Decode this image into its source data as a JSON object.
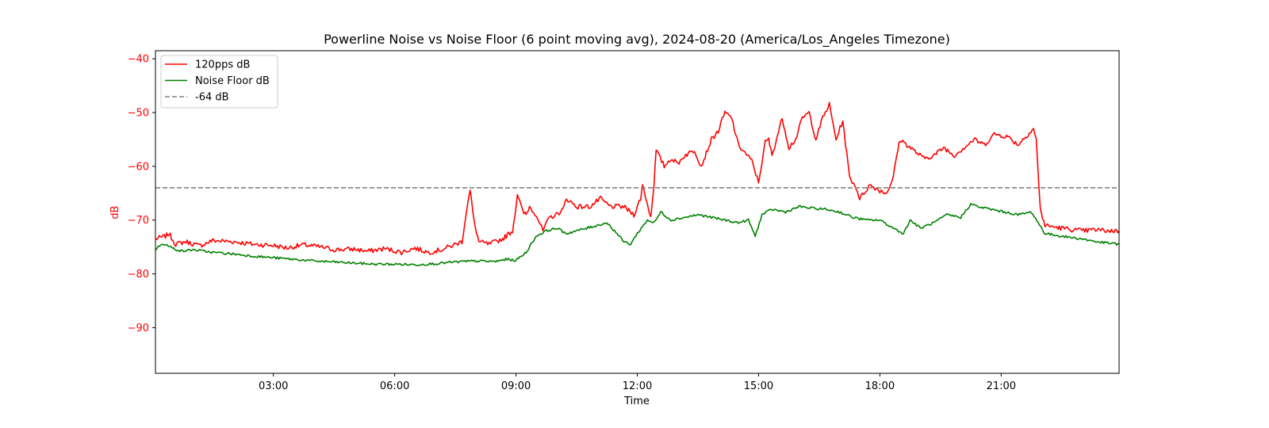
{
  "chart_data": {
    "type": "line",
    "title": "Powerline Noise vs Noise Floor (6 point moving avg), 2024-08-20 (America/Los_Angeles Timezone)",
    "xlabel": "Time",
    "ylabel": "dB",
    "xlim": [
      "00:05",
      "23:55"
    ],
    "ylim": [
      -98.5,
      -38.5
    ],
    "x_ticks": [
      "03:00",
      "06:00",
      "09:00",
      "12:00",
      "15:00",
      "18:00",
      "21:00"
    ],
    "y_ticks": [
      -40,
      -50,
      -60,
      -70,
      -80,
      -90
    ],
    "grid": false,
    "legend_position": "top-left",
    "colors": {
      "ylabel": "#ff0000",
      "ytick_labels": "#ff0000",
      "axes": "#000000"
    },
    "series": [
      {
        "name": "120pps dB",
        "color": "#ff0000",
        "style": "solid",
        "points": [
          [
            "00:05",
            -73.5
          ],
          [
            "00:20",
            -73.0
          ],
          [
            "00:25",
            -72.5
          ],
          [
            "00:35",
            -74.5
          ],
          [
            "00:50",
            -74.0
          ],
          [
            "01:10",
            -74.8
          ],
          [
            "01:30",
            -73.8
          ],
          [
            "02:00",
            -74.0
          ],
          [
            "02:30",
            -74.5
          ],
          [
            "03:00",
            -74.7
          ],
          [
            "03:20",
            -75.2
          ],
          [
            "03:45",
            -74.6
          ],
          [
            "04:10",
            -75.0
          ],
          [
            "04:30",
            -75.5
          ],
          [
            "05:00",
            -75.4
          ],
          [
            "05:20",
            -75.8
          ],
          [
            "05:45",
            -75.3
          ],
          [
            "06:10",
            -76.0
          ],
          [
            "06:30",
            -75.2
          ],
          [
            "06:50",
            -76.0
          ],
          [
            "07:10",
            -75.5
          ],
          [
            "07:30",
            -74.5
          ],
          [
            "07:40",
            -74.0
          ],
          [
            "07:48",
            -67.0
          ],
          [
            "07:52",
            -64.5
          ],
          [
            "07:58",
            -70.5
          ],
          [
            "08:05",
            -74.0
          ],
          [
            "08:20",
            -74.5
          ],
          [
            "08:40",
            -73.5
          ],
          [
            "08:55",
            -72.0
          ],
          [
            "09:00",
            -67.5
          ],
          [
            "09:02",
            -65.0
          ],
          [
            "09:10",
            -68.5
          ],
          [
            "09:15",
            -69.0
          ],
          [
            "09:20",
            -67.5
          ],
          [
            "09:30",
            -69.0
          ],
          [
            "09:40",
            -72.0
          ],
          [
            "09:50",
            -69.5
          ],
          [
            "10:00",
            -69.0
          ],
          [
            "10:10",
            -68.0
          ],
          [
            "10:15",
            -66.0
          ],
          [
            "10:30",
            -67.5
          ],
          [
            "10:50",
            -67.5
          ],
          [
            "11:05",
            -66.0
          ],
          [
            "11:20",
            -67.5
          ],
          [
            "11:40",
            -67.5
          ],
          [
            "11:55",
            -69.0
          ],
          [
            "12:05",
            -66.0
          ],
          [
            "12:08",
            -63.5
          ],
          [
            "12:12",
            -65.5
          ],
          [
            "12:20",
            -69.5
          ],
          [
            "12:25",
            -63.0
          ],
          [
            "12:28",
            -57.0
          ],
          [
            "12:40",
            -60.0
          ],
          [
            "12:50",
            -58.5
          ],
          [
            "13:00",
            -59.5
          ],
          [
            "13:10",
            -58.0
          ],
          [
            "13:25",
            -57.0
          ],
          [
            "13:35",
            -60.0
          ],
          [
            "13:50",
            -55.0
          ],
          [
            "14:00",
            -53.5
          ],
          [
            "14:10",
            -50.0
          ],
          [
            "14:20",
            -51.0
          ],
          [
            "14:30",
            -56.0
          ],
          [
            "14:40",
            -57.5
          ],
          [
            "14:50",
            -59.0
          ],
          [
            "15:00",
            -63.0
          ],
          [
            "15:10",
            -55.5
          ],
          [
            "15:15",
            -55.0
          ],
          [
            "15:20",
            -58.0
          ],
          [
            "15:35",
            -51.0
          ],
          [
            "15:45",
            -56.5
          ],
          [
            "15:55",
            -55.0
          ],
          [
            "16:05",
            -51.0
          ],
          [
            "16:15",
            -50.0
          ],
          [
            "16:25",
            -55.0
          ],
          [
            "16:35",
            -51.0
          ],
          [
            "16:45",
            -48.5
          ],
          [
            "16:55",
            -55.0
          ],
          [
            "17:05",
            -51.5
          ],
          [
            "17:15",
            -62.0
          ],
          [
            "17:25",
            -64.0
          ],
          [
            "17:30",
            -66.0
          ],
          [
            "17:45",
            -63.5
          ],
          [
            "18:00",
            -64.5
          ],
          [
            "18:10",
            -65.0
          ],
          [
            "18:20",
            -62.0
          ],
          [
            "18:25",
            -58.0
          ],
          [
            "18:30",
            -55.0
          ],
          [
            "18:50",
            -57.0
          ],
          [
            "19:05",
            -58.5
          ],
          [
            "19:20",
            -58.0
          ],
          [
            "19:35",
            -56.5
          ],
          [
            "19:50",
            -58.0
          ],
          [
            "20:05",
            -56.5
          ],
          [
            "20:20",
            -55.0
          ],
          [
            "20:35",
            -56.0
          ],
          [
            "20:50",
            -54.0
          ],
          [
            "21:10",
            -54.5
          ],
          [
            "21:25",
            -56.0
          ],
          [
            "21:40",
            -54.0
          ],
          [
            "21:48",
            -53.0
          ],
          [
            "21:52",
            -55.0
          ],
          [
            "21:58",
            -68.0
          ],
          [
            "22:05",
            -71.0
          ],
          [
            "22:30",
            -71.5
          ],
          [
            "23:00",
            -72.0
          ],
          [
            "23:20",
            -71.8
          ],
          [
            "23:40",
            -72.0
          ],
          [
            "23:55",
            -72.0
          ]
        ]
      },
      {
        "name": "Noise Floor dB",
        "color": "#008000",
        "style": "solid",
        "points": [
          [
            "00:05",
            -75.5
          ],
          [
            "00:15",
            -74.3
          ],
          [
            "00:30",
            -75.2
          ],
          [
            "00:45",
            -75.8
          ],
          [
            "01:00",
            -75.5
          ],
          [
            "01:30",
            -76.0
          ],
          [
            "02:00",
            -76.3
          ],
          [
            "02:30",
            -76.7
          ],
          [
            "03:00",
            -77.0
          ],
          [
            "03:30",
            -77.3
          ],
          [
            "04:00",
            -77.6
          ],
          [
            "04:30",
            -77.8
          ],
          [
            "05:00",
            -78.0
          ],
          [
            "05:30",
            -78.2
          ],
          [
            "06:00",
            -78.2
          ],
          [
            "06:30",
            -78.3
          ],
          [
            "07:00",
            -78.1
          ],
          [
            "07:30",
            -77.8
          ],
          [
            "08:00",
            -77.6
          ],
          [
            "08:30",
            -77.7
          ],
          [
            "08:45",
            -77.3
          ],
          [
            "09:00",
            -77.5
          ],
          [
            "09:15",
            -76.0
          ],
          [
            "09:30",
            -73.0
          ],
          [
            "09:45",
            -72.0
          ],
          [
            "10:00",
            -71.5
          ],
          [
            "10:15",
            -72.5
          ],
          [
            "10:30",
            -72.0
          ],
          [
            "10:45",
            -71.5
          ],
          [
            "11:00",
            -71.0
          ],
          [
            "11:15",
            -70.5
          ],
          [
            "11:30",
            -72.5
          ],
          [
            "11:40",
            -74.0
          ],
          [
            "11:50",
            -74.5
          ],
          [
            "12:00",
            -72.5
          ],
          [
            "12:15",
            -70.0
          ],
          [
            "12:25",
            -70.5
          ],
          [
            "12:35",
            -68.5
          ],
          [
            "12:50",
            -70.0
          ],
          [
            "13:10",
            -69.5
          ],
          [
            "13:30",
            -69.0
          ],
          [
            "13:50",
            -69.5
          ],
          [
            "14:10",
            -70.0
          ],
          [
            "14:30",
            -70.5
          ],
          [
            "14:45",
            -70.0
          ],
          [
            "14:55",
            -73.0
          ],
          [
            "15:05",
            -69.0
          ],
          [
            "15:20",
            -68.0
          ],
          [
            "15:40",
            -68.5
          ],
          [
            "16:00",
            -67.5
          ],
          [
            "16:20",
            -67.8
          ],
          [
            "16:40",
            -68.0
          ],
          [
            "17:00",
            -68.5
          ],
          [
            "17:20",
            -69.5
          ],
          [
            "17:40",
            -70.0
          ],
          [
            "18:00",
            -70.0
          ],
          [
            "18:20",
            -71.5
          ],
          [
            "18:35",
            -72.5
          ],
          [
            "18:45",
            -70.0
          ],
          [
            "19:00",
            -71.5
          ],
          [
            "19:20",
            -70.5
          ],
          [
            "19:40",
            -69.0
          ],
          [
            "20:00",
            -69.5
          ],
          [
            "20:15",
            -67.0
          ],
          [
            "20:25",
            -67.5
          ],
          [
            "20:45",
            -68.0
          ],
          [
            "21:05",
            -68.5
          ],
          [
            "21:25",
            -69.0
          ],
          [
            "21:45",
            -68.5
          ],
          [
            "21:55",
            -70.5
          ],
          [
            "22:05",
            -72.5
          ],
          [
            "22:30",
            -73.0
          ],
          [
            "23:00",
            -73.5
          ],
          [
            "23:20",
            -74.0
          ],
          [
            "23:40",
            -74.3
          ],
          [
            "23:55",
            -74.5
          ]
        ]
      },
      {
        "name": "-64 dB",
        "color": "#808080",
        "style": "dashed",
        "points": [
          [
            "00:05",
            -64
          ],
          [
            "23:55",
            -64
          ]
        ]
      }
    ]
  }
}
